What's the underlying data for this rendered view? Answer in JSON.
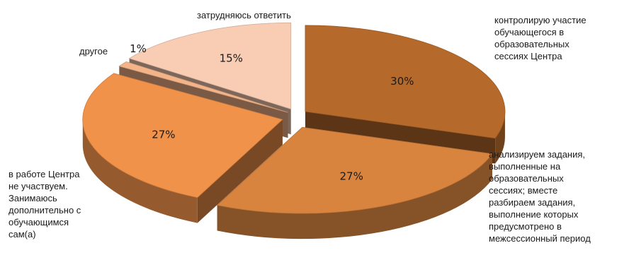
{
  "chart_data": {
    "type": "pie",
    "style": "3d-exploded",
    "legend": "none",
    "slices": [
      {
        "label": "контролирую участие\nобучающегося в\nобразовательных\nсессиях Центра",
        "value": 30,
        "value_label": "30%",
        "color": "#b56a2c"
      },
      {
        "label": "анализируем задания,\nвыполненные на\nобразовательных\nсессиях; вместе\nразбираем задания,\nвыполнение которых\nпредусмотрено в\nмежсессионный период",
        "value": 27,
        "value_label": "27%",
        "color": "#d8843f"
      },
      {
        "label": "в работе Центра\nне участвуем.\nЗанимаюсь\nдополнительно с\nобучающимся\nсам(а)",
        "value": 27,
        "value_label": "27%",
        "color": "#f1924a"
      },
      {
        "label": "другое",
        "value": 1,
        "value_label": "1%",
        "color": "#f3b48a"
      },
      {
        "label": "затрудняюсь ответить",
        "value": 15,
        "value_label": "15%",
        "color": "#f8cdb4"
      }
    ]
  }
}
